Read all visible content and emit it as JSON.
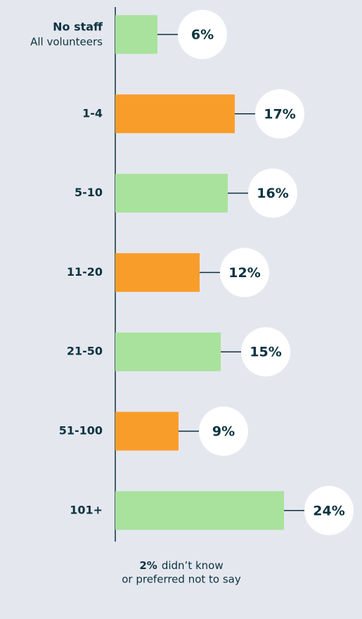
{
  "chart_data": {
    "type": "bar",
    "orientation": "horizontal",
    "categories": [
      "No staff",
      "1-4",
      "5-10",
      "11-20",
      "21-50",
      "51-100",
      "101+"
    ],
    "category_sublabel": "All volunteers",
    "values": [
      6,
      17,
      16,
      12,
      15,
      9,
      24
    ],
    "value_labels": [
      "6%",
      "17%",
      "16%",
      "12%",
      "15%",
      "9%",
      "24%"
    ],
    "colors": [
      "#a8e29c",
      "#f99d2a",
      "#a8e29c",
      "#f99d2a",
      "#a8e29c",
      "#f99d2a",
      "#a8e29c"
    ],
    "xlim": [
      0,
      24
    ],
    "footnote": {
      "value_label": "2%",
      "lines": [
        "didn’t know",
        "or preferred not to say"
      ]
    }
  }
}
